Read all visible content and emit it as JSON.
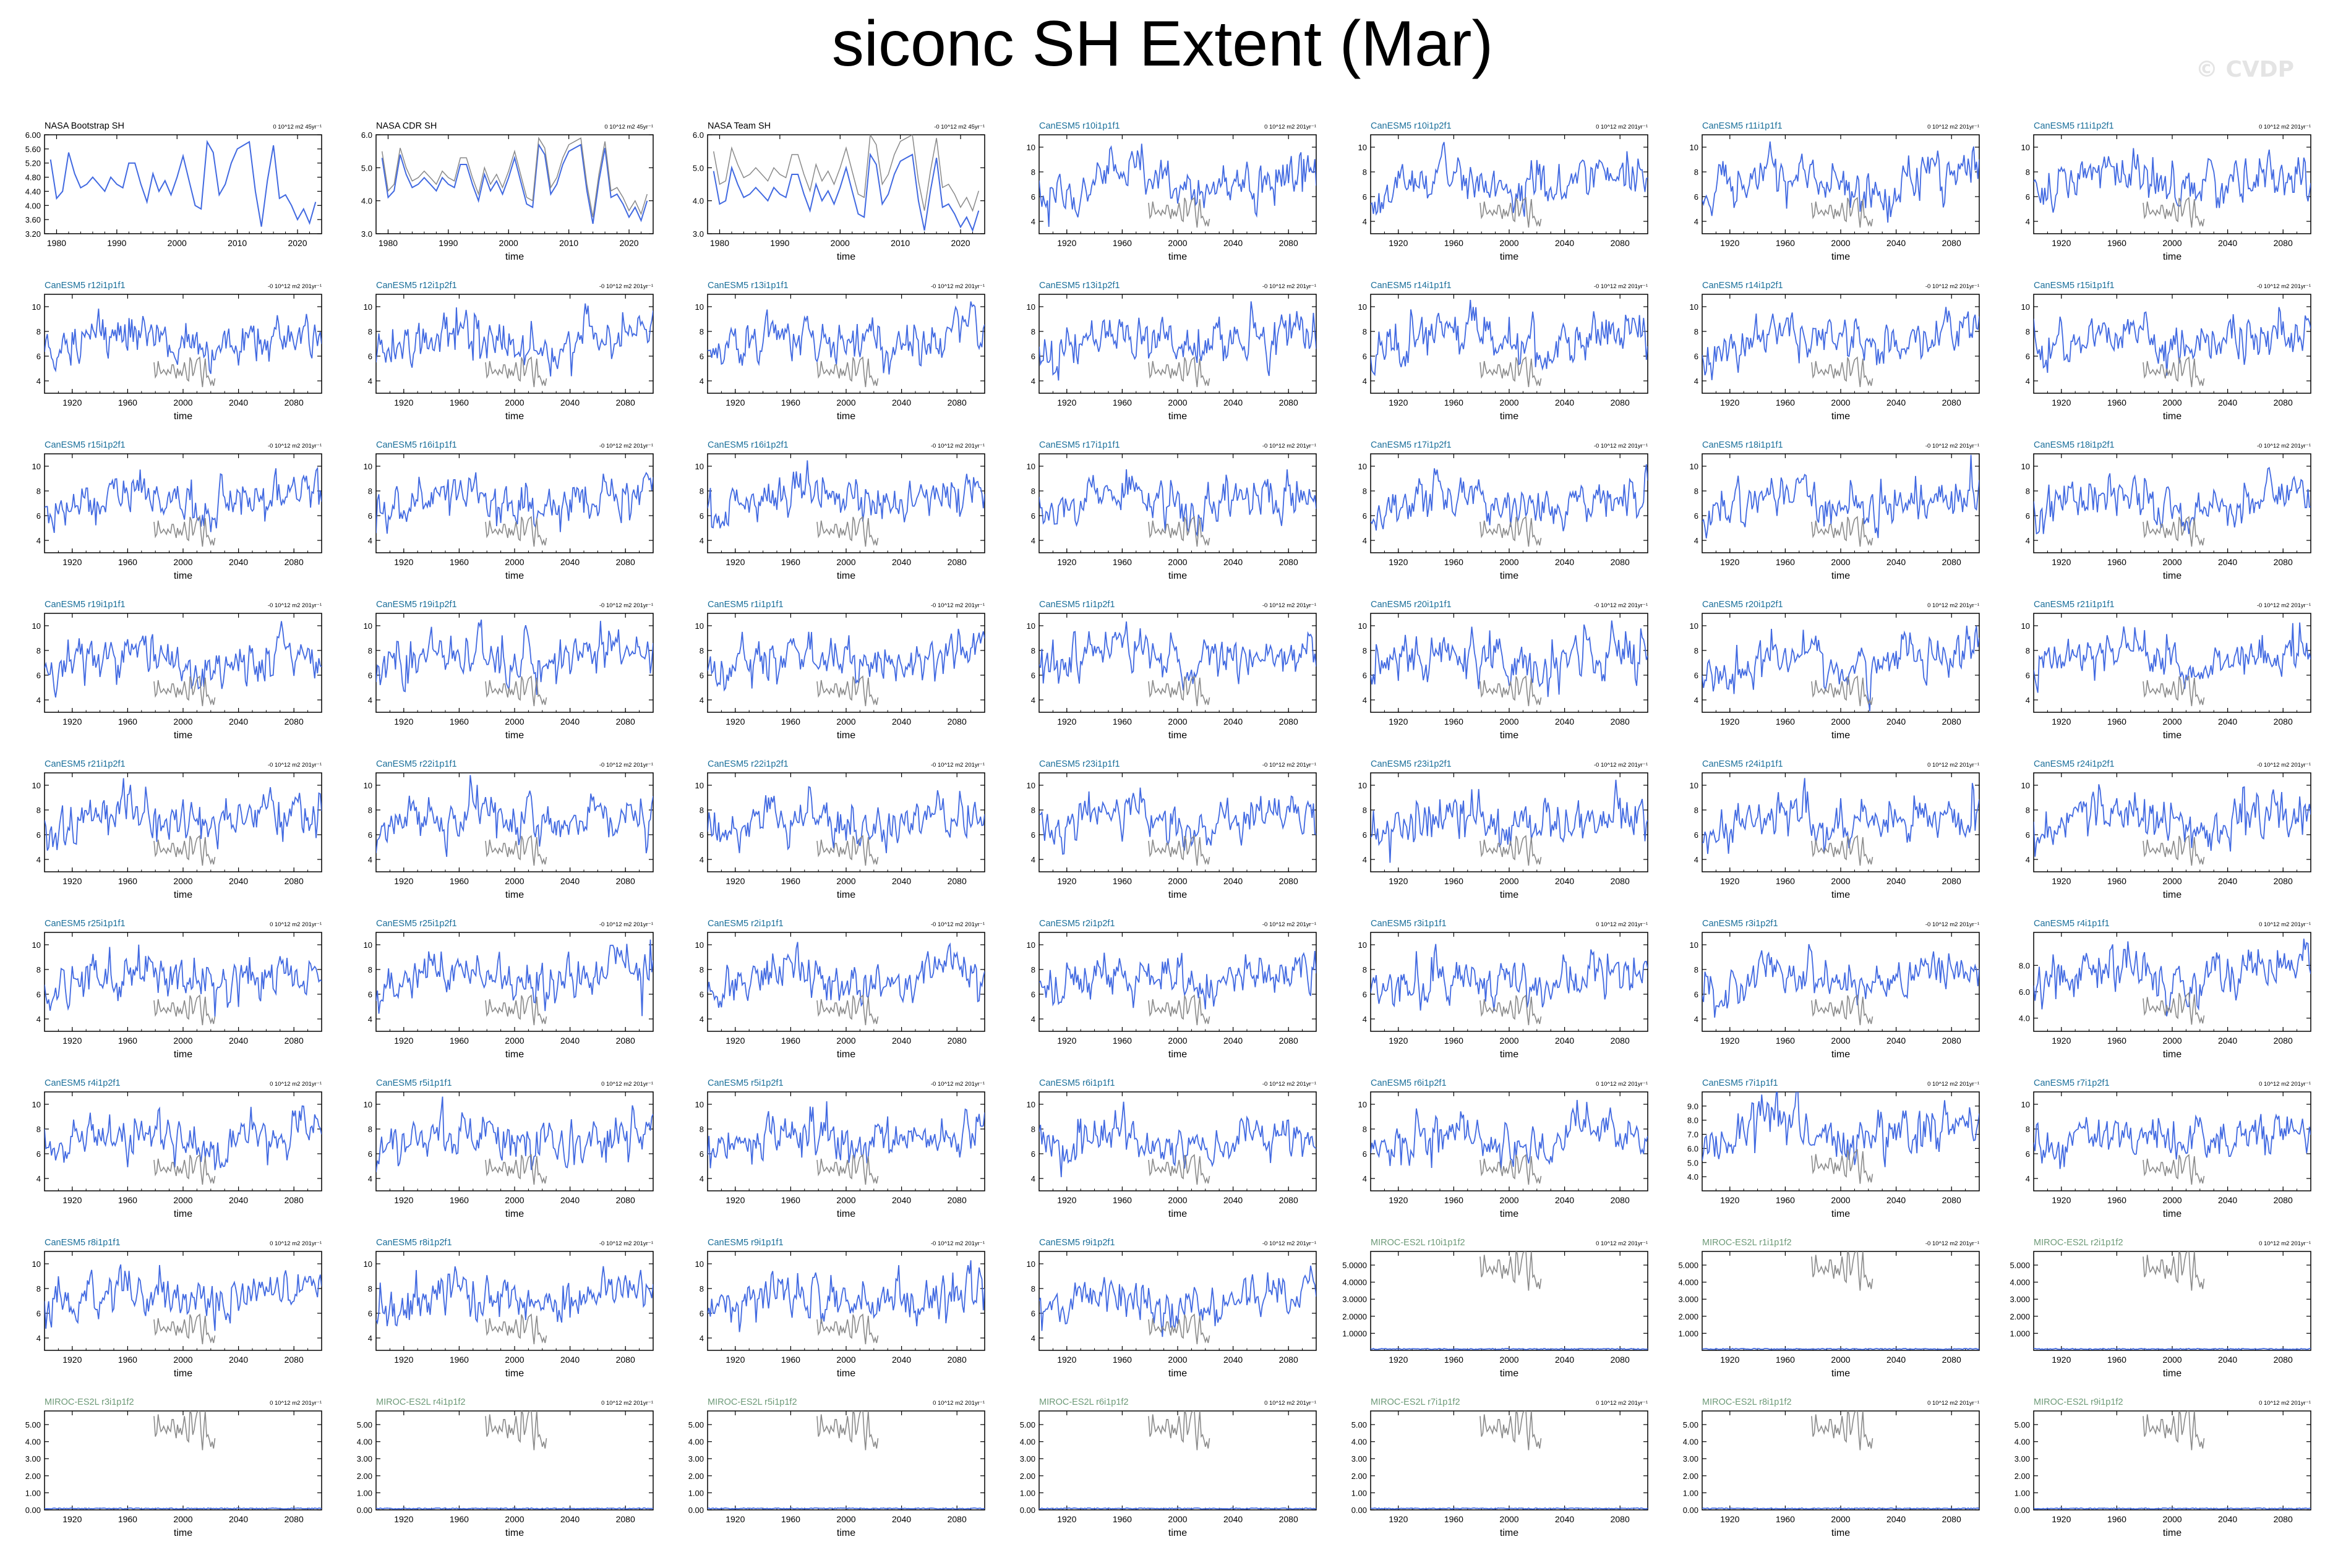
{
  "title": "siconc SH Extent (Mar)",
  "copyright": "© CVDP",
  "colors": {
    "obs_label": "#000000",
    "canesm_label": "#1b6f9a",
    "miroc_label": "#6e9a78",
    "model_line": "#4169e1",
    "obs_line": "#8a8a8a"
  },
  "chart_data": [
    {
      "type": "line",
      "title": "NASA Bootstrap SH",
      "trend": "0 10^12 m2 45yr⁻¹",
      "xlabel": "",
      "xlim": [
        1978,
        2024
      ],
      "ylim": [
        3.2,
        6.0
      ],
      "xticks": [
        1980,
        1990,
        2000,
        2010,
        2020
      ],
      "yticks": [
        3.2,
        3.6,
        4.0,
        4.4,
        4.8,
        5.2,
        5.6,
        6.0
      ],
      "ytick_labels": [
        "3.20",
        "3.60",
        "4.00",
        "4.40",
        "4.80",
        "5.20",
        "5.60",
        "6.00"
      ],
      "series": [
        {
          "kind": "model",
          "x_start": 1979,
          "values": [
            5.3,
            4.2,
            4.4,
            5.5,
            4.9,
            4.5,
            4.6,
            4.8,
            4.6,
            4.4,
            4.8,
            4.6,
            4.5,
            5.2,
            5.2,
            4.6,
            4.1,
            4.9,
            4.4,
            4.7,
            4.3,
            4.8,
            5.4,
            4.7,
            4.0,
            3.9,
            5.8,
            5.5,
            4.3,
            4.6,
            5.2,
            5.6,
            5.7,
            5.8,
            4.4,
            3.4,
            4.7,
            5.7,
            4.2,
            4.3,
            4.0,
            3.6,
            3.9,
            3.5,
            4.1
          ]
        }
      ]
    },
    {
      "type": "line",
      "title": "NASA CDR SH",
      "trend": "0 10^12 m2 45yr⁻¹",
      "xlabel": "time",
      "xlim": [
        1978,
        2024
      ],
      "ylim": [
        3.0,
        6.0
      ],
      "xticks": [
        1980,
        1990,
        2000,
        2010,
        2020
      ],
      "yticks": [
        3,
        4,
        5,
        6
      ],
      "ytick_labels": [
        "3.0",
        "4.0",
        "5.0",
        "6.0"
      ],
      "series": [
        {
          "kind": "model",
          "x_start": 1979,
          "values": [
            5.3,
            4.1,
            4.3,
            5.4,
            4.8,
            4.4,
            4.5,
            4.7,
            4.5,
            4.3,
            4.7,
            4.5,
            4.4,
            5.1,
            5.1,
            4.5,
            4.0,
            4.8,
            4.3,
            4.6,
            4.2,
            4.7,
            5.3,
            4.6,
            3.9,
            3.8,
            5.7,
            5.4,
            4.2,
            4.5,
            5.1,
            5.5,
            5.6,
            5.7,
            4.3,
            3.3,
            4.6,
            5.6,
            4.1,
            4.2,
            3.9,
            3.5,
            3.8,
            3.4,
            4.0
          ]
        },
        {
          "kind": "obs",
          "x_start": 1979,
          "values": [
            5.5,
            4.3,
            4.5,
            5.6,
            5.0,
            4.6,
            4.7,
            4.9,
            4.7,
            4.5,
            4.9,
            4.7,
            4.6,
            5.3,
            5.3,
            4.7,
            4.2,
            5.0,
            4.5,
            4.8,
            4.4,
            4.9,
            5.5,
            4.8,
            4.1,
            4.0,
            5.9,
            5.6,
            4.4,
            4.7,
            5.3,
            5.7,
            5.8,
            5.9,
            4.5,
            3.5,
            4.8,
            5.8,
            4.3,
            4.4,
            4.1,
            3.7,
            4.0,
            3.6,
            4.2
          ]
        }
      ]
    },
    {
      "type": "line",
      "title": "NASA Team SH",
      "trend": "-0 10^12 m2 45yr⁻¹",
      "xlabel": "time",
      "xlim": [
        1978,
        2024
      ],
      "ylim": [
        3.0,
        6.0
      ],
      "xticks": [
        1980,
        1990,
        2000,
        2010,
        2020
      ],
      "yticks": [
        3,
        4,
        5,
        6
      ],
      "ytick_labels": [
        "3.0",
        "4.0",
        "5.0",
        "6.0"
      ],
      "series": [
        {
          "kind": "model",
          "x_start": 1979,
          "values": [
            4.9,
            3.9,
            4.0,
            5.0,
            4.5,
            4.1,
            4.2,
            4.4,
            4.2,
            4.0,
            4.4,
            4.2,
            4.1,
            4.8,
            4.8,
            4.2,
            3.7,
            4.5,
            4.0,
            4.3,
            3.9,
            4.4,
            5.0,
            4.3,
            3.6,
            3.5,
            5.4,
            5.1,
            3.9,
            4.2,
            4.8,
            5.2,
            5.3,
            5.4,
            4.0,
            3.1,
            4.3,
            5.3,
            3.8,
            3.9,
            3.6,
            3.2,
            3.5,
            3.1,
            3.7
          ]
        },
        {
          "kind": "obs",
          "x_start": 1979,
          "values": [
            5.5,
            4.5,
            4.6,
            5.6,
            5.1,
            4.7,
            4.8,
            5.0,
            4.8,
            4.6,
            5.0,
            4.8,
            4.7,
            5.4,
            5.4,
            4.8,
            4.3,
            5.1,
            4.6,
            4.9,
            4.5,
            5.0,
            5.6,
            4.9,
            4.2,
            4.1,
            6.0,
            5.7,
            4.5,
            4.8,
            5.4,
            5.8,
            5.9,
            6.0,
            4.6,
            3.7,
            4.9,
            5.9,
            4.4,
            4.5,
            4.2,
            3.8,
            4.1,
            3.7,
            4.3
          ]
        }
      ]
    }
  ],
  "panels": {
    "canesm_titles": [
      "CanESM5 r10i1p1f1",
      "CanESM5 r10i1p2f1",
      "CanESM5 r11i1p1f1",
      "CanESM5 r11i1p2f1",
      "CanESM5 r12i1p1f1",
      "CanESM5 r12i1p2f1",
      "CanESM5 r13i1p1f1",
      "CanESM5 r13i1p2f1",
      "CanESM5 r14i1p1f1",
      "CanESM5 r14i1p2f1",
      "CanESM5 r15i1p1f1",
      "CanESM5 r15i1p2f1",
      "CanESM5 r16i1p1f1",
      "CanESM5 r16i1p2f1",
      "CanESM5 r17i1p1f1",
      "CanESM5 r17i1p2f1",
      "CanESM5 r18i1p1f1",
      "CanESM5 r18i1p2f1",
      "CanESM5 r19i1p1f1",
      "CanESM5 r19i1p2f1",
      "CanESM5 r1i1p1f1",
      "CanESM5 r1i1p2f1",
      "CanESM5 r20i1p1f1",
      "CanESM5 r20i1p2f1",
      "CanESM5 r21i1p1f1",
      "CanESM5 r21i1p2f1",
      "CanESM5 r22i1p1f1",
      "CanESM5 r22i1p2f1",
      "CanESM5 r23i1p1f1",
      "CanESM5 r23i1p2f1",
      "CanESM5 r24i1p1f1",
      "CanESM5 r24i1p2f1",
      "CanESM5 r25i1p1f1",
      "CanESM5 r25i1p2f1",
      "CanESM5 r2i1p1f1",
      "CanESM5 r2i1p2f1",
      "CanESM5 r3i1p1f1",
      "CanESM5 r3i1p2f1",
      "CanESM5 r4i1p1f1",
      "CanESM5 r4i1p2f1",
      "CanESM5 r5i1p1f1",
      "CanESM5 r5i1p2f1",
      "CanESM5 r6i1p1f1",
      "CanESM5 r6i1p2f1",
      "CanESM5 r7i1p1f1",
      "CanESM5 r7i1p2f1",
      "CanESM5 r8i1p1f1",
      "CanESM5 r8i1p2f1",
      "CanESM5 r9i1p1f1",
      "CanESM5 r9i1p2f1"
    ],
    "canesm_trends": [
      "0 10^12 m2 201yr⁻¹",
      "0 10^12 m2 201yr⁻¹",
      "0 10^12 m2 201yr⁻¹",
      "0 10^12 m2 201yr⁻¹",
      "-0 10^12 m2 201yr⁻¹",
      "-0 10^12 m2 201yr⁻¹",
      "-0 10^12 m2 201yr⁻¹",
      "-0 10^12 m2 201yr⁻¹",
      "-0 10^12 m2 201yr⁻¹",
      "-0 10^12 m2 201yr⁻¹",
      "-0 10^12 m2 201yr⁻¹",
      "-0 10^12 m2 201yr⁻¹",
      "-0 10^12 m2 201yr⁻¹",
      "-0 10^12 m2 201yr⁻¹",
      "-0 10^12 m2 201yr⁻¹",
      "-0 10^12 m2 201yr⁻¹",
      "-0 10^12 m2 201yr⁻¹",
      "-0 10^12 m2 201yr⁻¹",
      "-0 10^12 m2 201yr⁻¹",
      "-0 10^12 m2 201yr⁻¹",
      "-0 10^12 m2 201yr⁻¹",
      "-0 10^12 m2 201yr⁻¹",
      "-0 10^12 m2 201yr⁻¹",
      "0 10^12 m2 201yr⁻¹",
      "-0 10^12 m2 201yr⁻¹",
      "-0 10^12 m2 201yr⁻¹",
      "-0 10^12 m2 201yr⁻¹",
      "-0 10^12 m2 201yr⁻¹",
      "-0 10^12 m2 201yr⁻¹",
      "-0 10^12 m2 201yr⁻¹",
      "0 10^12 m2 201yr⁻¹",
      "-0 10^12 m2 201yr⁻¹",
      "0 10^12 m2 201yr⁻¹",
      "-0 10^12 m2 201yr⁻¹",
      "-0 10^12 m2 201yr⁻¹",
      "-0 10^12 m2 201yr⁻¹",
      "0 10^12 m2 201yr⁻¹",
      "-0 10^12 m2 201yr⁻¹",
      "0 10^12 m2 201yr⁻¹",
      "0 10^12 m2 201yr⁻¹",
      "0 10^12 m2 201yr⁻¹",
      "-0 10^12 m2 201yr⁻¹",
      "-0 10^12 m2 201yr⁻¹",
      "0 10^12 m2 201yr⁻¹",
      "0 10^12 m2 201yr⁻¹",
      "0 10^12 m2 201yr⁻¹",
      "0 10^12 m2 201yr⁻¹",
      "-0 10^12 m2 201yr⁻¹",
      "-0 10^12 m2 201yr⁻¹",
      "-0 10^12 m2 201yr⁻¹"
    ],
    "miroc_titles": [
      "MIROC-ES2L r10i1p1f2",
      "MIROC-ES2L r1i1p1f2",
      "MIROC-ES2L r2i1p1f2",
      "MIROC-ES2L r3i1p1f2",
      "MIROC-ES2L r4i1p1f2",
      "MIROC-ES2L r5i1p1f2",
      "MIROC-ES2L r6i1p1f2",
      "MIROC-ES2L r7i1p1f2",
      "MIROC-ES2L r8i1p1f2",
      "MIROC-ES2L r9i1p1f2"
    ],
    "miroc_trends": [
      "0 10^12 m2 201yr⁻¹",
      "-0 10^12 m2 201yr⁻¹",
      "0 10^12 m2 201yr⁻¹",
      "0 10^12 m2 201yr⁻¹",
      "0 10^12 m2 201yr⁻¹",
      "0 10^12 m2 201yr⁻¹",
      "0 10^12 m2 201yr⁻¹",
      "0 10^12 m2 201yr⁻¹",
      "0 10^12 m2 201yr⁻¹",
      "0 10^12 m2 201yr⁻¹"
    ],
    "model_xlim": [
      1900,
      2100
    ],
    "model_xticks": [
      1920,
      1960,
      2000,
      2040,
      2080
    ],
    "model_x_start": 1900,
    "model_x_end": 2100,
    "obs_x_start": 1979,
    "canesm_yticks": [
      4,
      6,
      8,
      10
    ],
    "canesm_ytick_labels": [
      "4",
      "6",
      "8",
      "10"
    ],
    "canesm_ylim": [
      3,
      11
    ],
    "canesm_r4i1p1f1_yticks": [
      4,
      6,
      8
    ],
    "canesm_r4i1p1f1_ytick_labels": [
      "4.0",
      "6.0",
      "8.0"
    ],
    "canesm_r7i1p1f1_yticks": [
      4,
      5,
      6,
      7,
      8,
      9
    ],
    "canesm_r7i1p1f1_ytick_labels": [
      "4.0",
      "5.0",
      "6.0",
      "7.0",
      "8.0",
      "9.0"
    ],
    "miroc_row8_yticks": [
      1,
      2,
      3,
      4,
      5
    ],
    "miroc_row8_ytick_labels_a": [
      "1.0000",
      "2.0000",
      "3.0000",
      "4.0000",
      "5.0000"
    ],
    "miroc_row8_ytick_labels_b": [
      "1.000",
      "2.000",
      "3.000",
      "4.000",
      "5.000"
    ],
    "miroc_row9_yticks": [
      0,
      1,
      2,
      3,
      4,
      5
    ],
    "miroc_row9_ytick_labels": [
      "0.00",
      "1.00",
      "2.00",
      "3.00",
      "4.00",
      "5.00"
    ],
    "miroc_ylim": [
      0,
      5.8
    ],
    "model_xlabel": "time",
    "obs_xticks_labels": [
      "1980",
      "1990",
      "2000",
      "2010",
      "2020"
    ],
    "model_xtick_labels": [
      "1920",
      "1960",
      "2000",
      "2040",
      "2080"
    ]
  }
}
